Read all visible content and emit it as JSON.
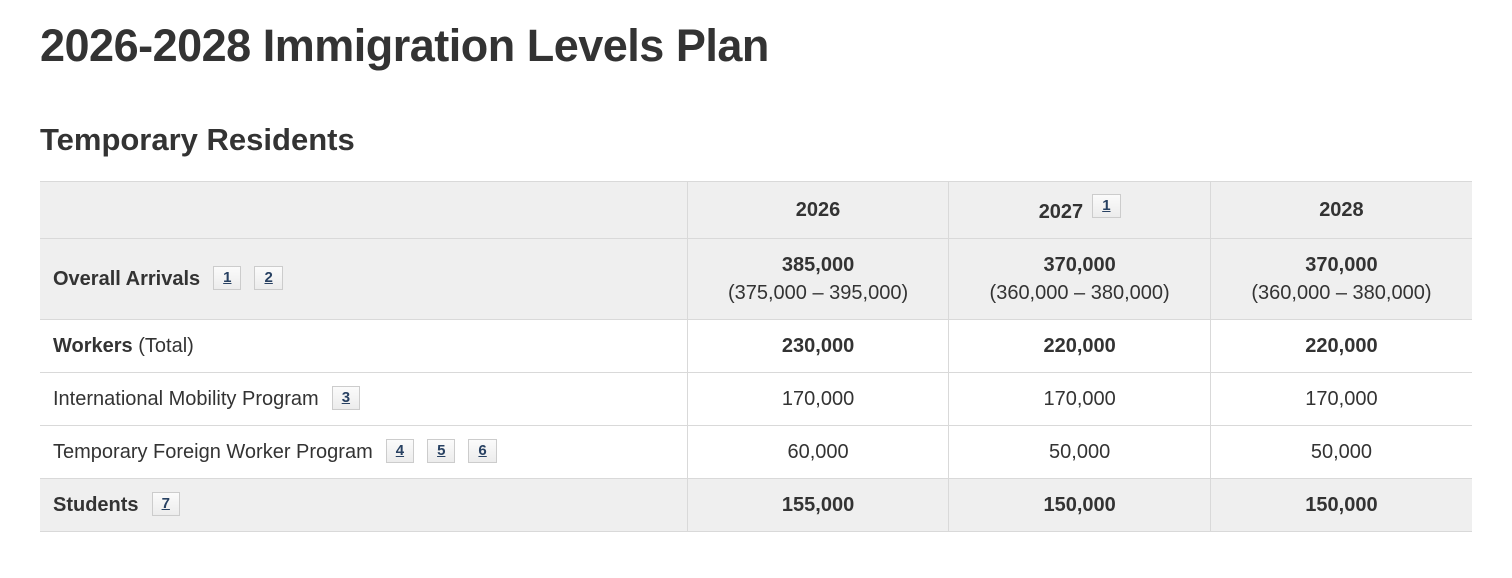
{
  "page": {
    "title": "2026-2028 Immigration Levels Plan",
    "section_heading": "Temporary Residents"
  },
  "colors": {
    "text": "#333333",
    "shaded_row_bg": "#efefef",
    "table_border": "#d9d9d9",
    "footnote_link": "#284162",
    "footnote_box_bg": "#f5f5f5",
    "footnote_box_border": "#cccccc"
  },
  "table": {
    "header": {
      "years": [
        {
          "label": "2026",
          "footnotes": []
        },
        {
          "label": "2027",
          "footnotes": [
            "1"
          ]
        },
        {
          "label": "2028",
          "footnotes": []
        }
      ]
    },
    "rows": [
      {
        "label_bold": "Overall Arrivals",
        "label_regular": "",
        "footnotes": [
          "1",
          "2"
        ],
        "cells": [
          {
            "value": "385,000",
            "range": "(375,000 – 395,000)"
          },
          {
            "value": "370,000",
            "range": "(360,000 – 380,000)"
          },
          {
            "value": "370,000",
            "range": "(360,000 – 380,000)"
          }
        ]
      },
      {
        "label_bold": "Workers",
        "label_regular": " (Total)",
        "footnotes": [],
        "cells": [
          {
            "value": "230,000"
          },
          {
            "value": "220,000"
          },
          {
            "value": "220,000"
          }
        ]
      },
      {
        "label_bold": "",
        "label_regular": "International Mobility Program",
        "footnotes": [
          "3"
        ],
        "cells": [
          {
            "value": "170,000"
          },
          {
            "value": "170,000"
          },
          {
            "value": "170,000"
          }
        ]
      },
      {
        "label_bold": "",
        "label_regular": "Temporary Foreign Worker Program",
        "footnotes": [
          "4",
          "5",
          "6"
        ],
        "cells": [
          {
            "value": "60,000"
          },
          {
            "value": "50,000"
          },
          {
            "value": "50,000"
          }
        ]
      },
      {
        "label_bold": "Students",
        "label_regular": "",
        "footnotes": [
          "7"
        ],
        "cells": [
          {
            "value": "155,000"
          },
          {
            "value": "150,000"
          },
          {
            "value": "150,000"
          }
        ]
      }
    ]
  }
}
